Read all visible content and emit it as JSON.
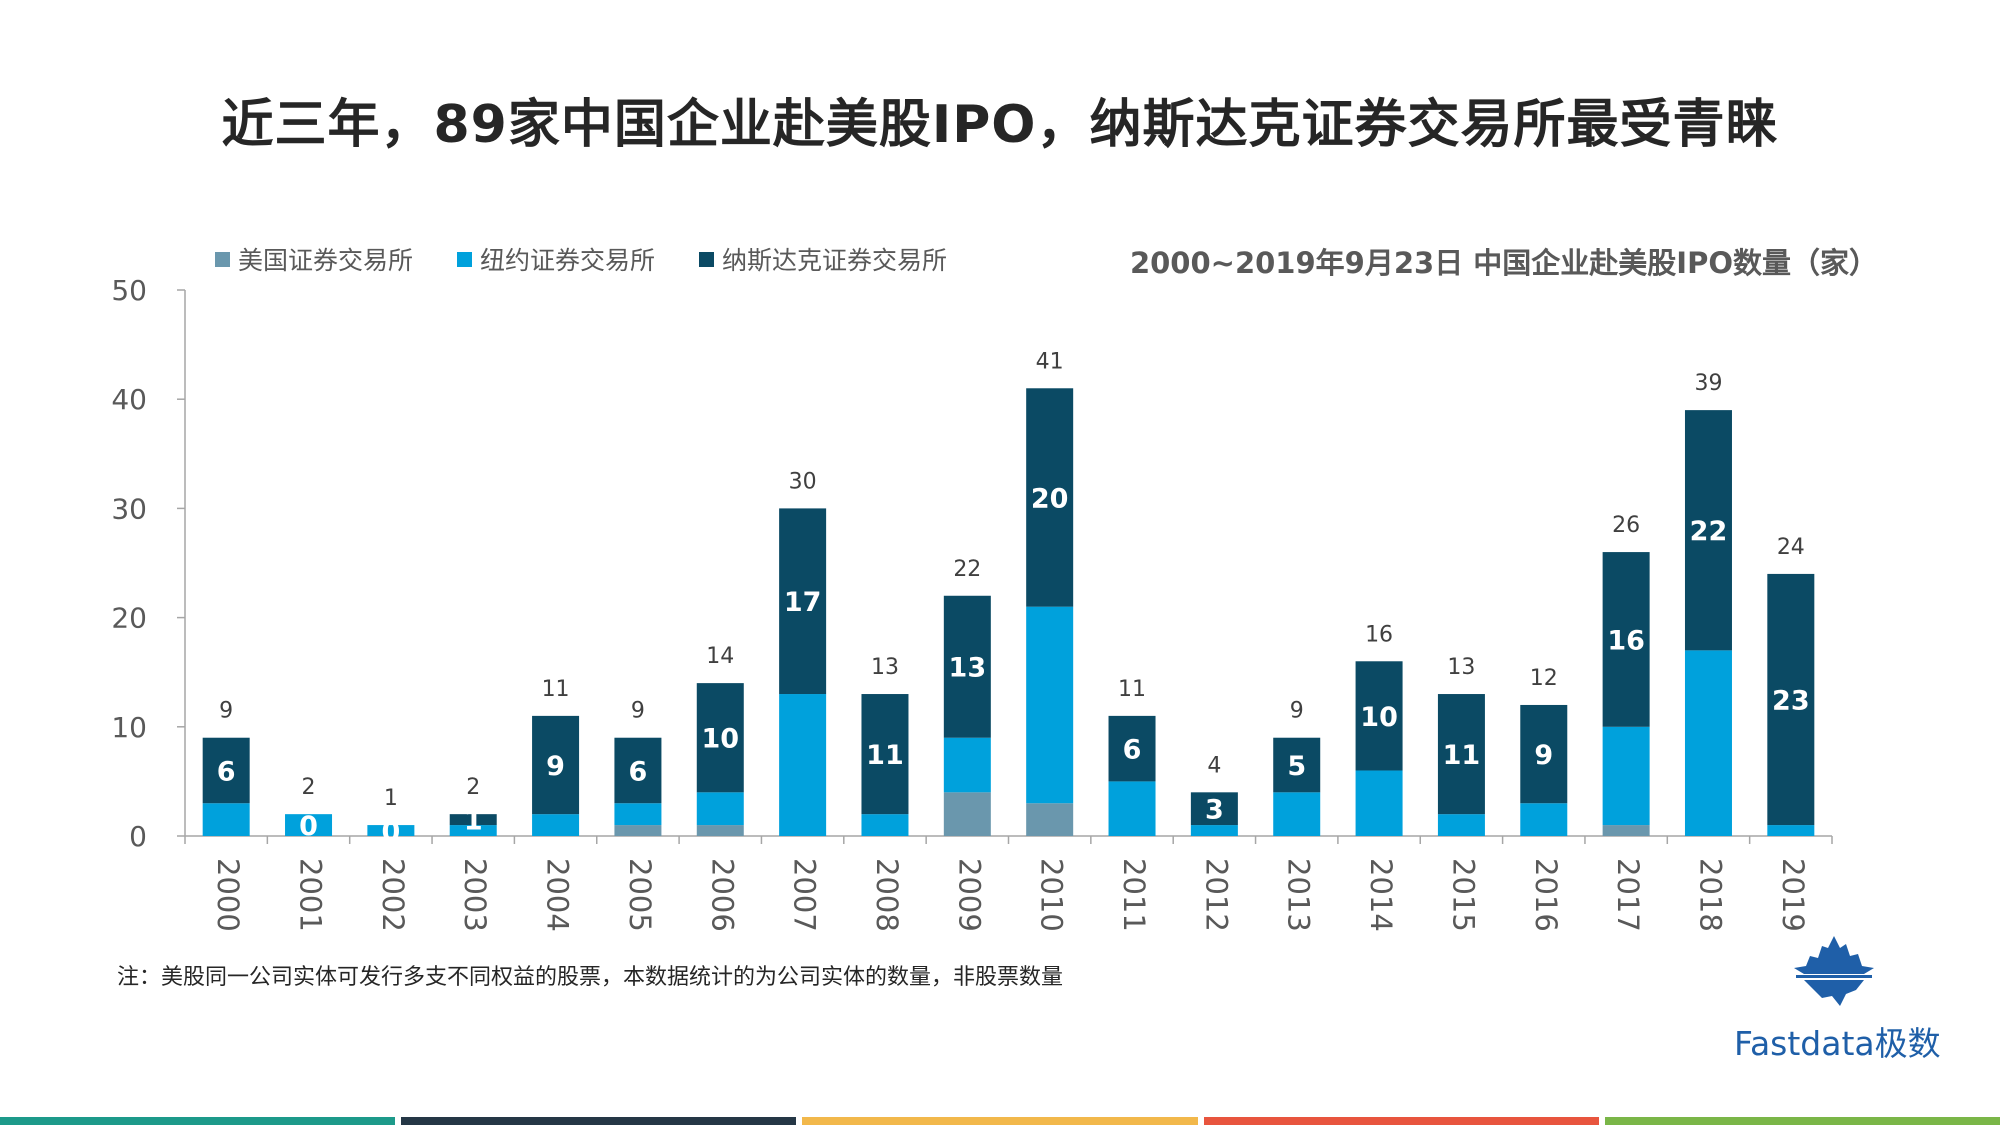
{
  "title": "近三年，89家中国企业赴美股IPO，纳斯达克证券交易所最受青睐",
  "legend": [
    {
      "label": "美国证券交易所",
      "color": "#6a97ad"
    },
    {
      "label": "纽约证券交易所",
      "color": "#00a1dc"
    },
    {
      "label": "纳斯达克证券交易所",
      "color": "#0b4a64"
    }
  ],
  "subtitle": "2000~2019年9月23日  中国企业赴美股IPO数量（家）",
  "note": "注：美股同一公司实体可发行多支不同权益的股票，本数据统计的为公司实体的数量，非股票数量",
  "logo": {
    "text": "Fastdata极数",
    "color": "#1f5fa8"
  },
  "footer_colors": [
    "#1d9a8a",
    "#253746",
    "#f2b84b",
    "#e8553e",
    "#7ab648"
  ],
  "chart_data": {
    "type": "bar",
    "stacked": true,
    "categories": [
      "2000",
      "2001",
      "2002",
      "2003",
      "2004",
      "2005",
      "2006",
      "2007",
      "2008",
      "2009",
      "2010",
      "2011",
      "2012",
      "2013",
      "2014",
      "2015",
      "2016",
      "2017",
      "2018",
      "2019"
    ],
    "series": [
      {
        "name": "美国证券交易所",
        "color": "#6a97ad",
        "values": [
          0,
          0,
          0,
          0,
          0,
          1,
          1,
          0,
          0,
          4,
          3,
          0,
          0,
          0,
          0,
          0,
          0,
          1,
          0,
          0
        ]
      },
      {
        "name": "纽约证券交易所",
        "color": "#00a1dc",
        "values": [
          3,
          2,
          1,
          1,
          2,
          2,
          3,
          13,
          2,
          5,
          18,
          5,
          1,
          4,
          6,
          2,
          3,
          9,
          17,
          1
        ]
      },
      {
        "name": "纳斯达克证券交易所",
        "color": "#0b4a64",
        "values": [
          6,
          0,
          0,
          1,
          9,
          6,
          10,
          17,
          11,
          13,
          20,
          6,
          3,
          5,
          10,
          11,
          9,
          16,
          22,
          23
        ]
      }
    ],
    "segment_labels": [
      "6",
      "0",
      "0",
      "1",
      "9",
      "6",
      "10",
      "17",
      "11",
      "13",
      "20",
      "6",
      "3",
      "5",
      "10",
      "11",
      "9",
      "16",
      "22",
      "23"
    ],
    "totals": [
      9,
      2,
      1,
      2,
      11,
      9,
      14,
      30,
      13,
      22,
      41,
      11,
      4,
      9,
      16,
      13,
      12,
      26,
      39,
      24
    ],
    "y_ticks": [
      0,
      10,
      20,
      30,
      40,
      50
    ],
    "ylim": [
      0,
      50
    ],
    "xlabel": "",
    "ylabel": ""
  }
}
